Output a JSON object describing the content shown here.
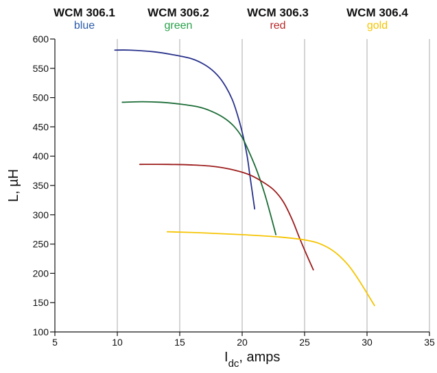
{
  "chart_data": {
    "type": "line",
    "title": "",
    "xlabel_main": "I",
    "xlabel_sub": "dc",
    "xlabel_rest": ", amps",
    "ylabel": "L, µH",
    "xlim": [
      5,
      35
    ],
    "ylim": [
      100,
      600
    ],
    "xticks": [
      5,
      10,
      15,
      20,
      25,
      30,
      35
    ],
    "yticks": [
      100,
      150,
      200,
      250,
      300,
      350,
      400,
      450,
      500,
      550,
      600
    ],
    "grid": "vertical",
    "legend_position": "top",
    "series": [
      {
        "name": "WCM 306.1",
        "color_label": "blue",
        "color": "#27308a",
        "label_color": "#2a5aa8",
        "points": [
          [
            9.8,
            581
          ],
          [
            11,
            581
          ],
          [
            13,
            578
          ],
          [
            14.5,
            573
          ],
          [
            16,
            566
          ],
          [
            17,
            556
          ],
          [
            17.8,
            543
          ],
          [
            18.5,
            525
          ],
          [
            19.2,
            497
          ],
          [
            19.7,
            465
          ],
          [
            20.1,
            432
          ],
          [
            20.4,
            400
          ],
          [
            20.6,
            370
          ],
          [
            20.8,
            340
          ],
          [
            21,
            310
          ]
        ]
      },
      {
        "name": "WCM 306.2",
        "color_label": "green",
        "color": "#1a6b35",
        "label_color": "#26a048",
        "points": [
          [
            10.4,
            492
          ],
          [
            12,
            493
          ],
          [
            13.5,
            492
          ],
          [
            15,
            489
          ],
          [
            16.5,
            484
          ],
          [
            17.5,
            477
          ],
          [
            18.5,
            466
          ],
          [
            19.3,
            452
          ],
          [
            20,
            432
          ],
          [
            20.6,
            405
          ],
          [
            21.2,
            374
          ],
          [
            21.8,
            336
          ],
          [
            22.3,
            298
          ],
          [
            22.7,
            266
          ]
        ]
      },
      {
        "name": "WCM 306.3",
        "color_label": "red",
        "color": "#9c1a1a",
        "label_color": "#b82828",
        "points": [
          [
            11.8,
            386
          ],
          [
            14,
            386
          ],
          [
            16,
            385
          ],
          [
            17.5,
            383
          ],
          [
            19,
            378
          ],
          [
            20.5,
            369
          ],
          [
            21.5,
            358
          ],
          [
            22.5,
            343
          ],
          [
            23.3,
            322
          ],
          [
            24,
            292
          ],
          [
            24.6,
            260
          ],
          [
            25.2,
            230
          ],
          [
            25.7,
            206
          ]
        ]
      },
      {
        "name": "WCM 306.4",
        "color_label": "gold",
        "color": "#f5c400",
        "label_color": "#f5c400",
        "points": [
          [
            14,
            271
          ],
          [
            17,
            269
          ],
          [
            20,
            266
          ],
          [
            23,
            262
          ],
          [
            25.3,
            256
          ],
          [
            26.5,
            248
          ],
          [
            27.5,
            235
          ],
          [
            28.5,
            214
          ],
          [
            29.3,
            190
          ],
          [
            30,
            166
          ],
          [
            30.6,
            145
          ]
        ]
      }
    ]
  }
}
